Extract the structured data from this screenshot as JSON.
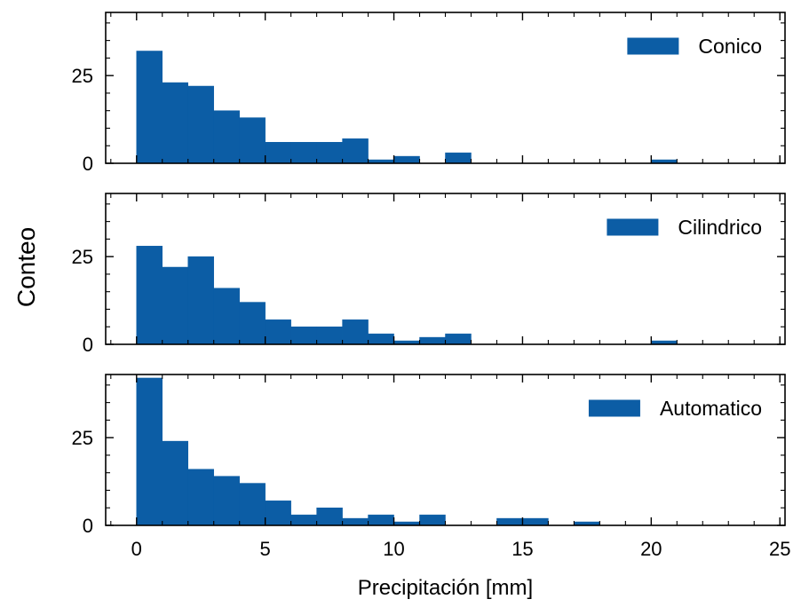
{
  "chart_data": {
    "type": "bar",
    "shared_x": true,
    "ylabel": "Conteo",
    "xlabel": "Precipitación [mm]",
    "xlim": [
      -1.2,
      25.2
    ],
    "ylim": [
      0,
      43
    ],
    "xticks": [
      0,
      5,
      10,
      15,
      20,
      25
    ],
    "yticks": [
      0,
      25
    ],
    "bin_width": 1,
    "color": "#0c5da5",
    "legend_position": "upper right",
    "panels": [
      {
        "series_name": "Conico",
        "bins": [
          {
            "x0": 0,
            "x1": 1,
            "count": 32
          },
          {
            "x0": 1,
            "x1": 2,
            "count": 23
          },
          {
            "x0": 2,
            "x1": 3,
            "count": 22
          },
          {
            "x0": 3,
            "x1": 4,
            "count": 15
          },
          {
            "x0": 4,
            "x1": 5,
            "count": 13
          },
          {
            "x0": 5,
            "x1": 6,
            "count": 6
          },
          {
            "x0": 6,
            "x1": 7,
            "count": 6
          },
          {
            "x0": 7,
            "x1": 8,
            "count": 6
          },
          {
            "x0": 8,
            "x1": 9,
            "count": 7
          },
          {
            "x0": 9,
            "x1": 10,
            "count": 1
          },
          {
            "x0": 10,
            "x1": 11,
            "count": 2
          },
          {
            "x0": 12,
            "x1": 13,
            "count": 3
          },
          {
            "x0": 20,
            "x1": 21,
            "count": 1
          }
        ]
      },
      {
        "series_name": "Cilindrico",
        "bins": [
          {
            "x0": 0,
            "x1": 1,
            "count": 28
          },
          {
            "x0": 1,
            "x1": 2,
            "count": 22
          },
          {
            "x0": 2,
            "x1": 3,
            "count": 25
          },
          {
            "x0": 3,
            "x1": 4,
            "count": 16
          },
          {
            "x0": 4,
            "x1": 5,
            "count": 12
          },
          {
            "x0": 5,
            "x1": 6,
            "count": 7
          },
          {
            "x0": 6,
            "x1": 7,
            "count": 5
          },
          {
            "x0": 7,
            "x1": 8,
            "count": 5
          },
          {
            "x0": 8,
            "x1": 9,
            "count": 7
          },
          {
            "x0": 9,
            "x1": 10,
            "count": 3
          },
          {
            "x0": 10,
            "x1": 11,
            "count": 1
          },
          {
            "x0": 11,
            "x1": 12,
            "count": 2
          },
          {
            "x0": 12,
            "x1": 13,
            "count": 3
          },
          {
            "x0": 20,
            "x1": 21,
            "count": 1
          }
        ]
      },
      {
        "series_name": "Automatico",
        "bins": [
          {
            "x0": 0,
            "x1": 1,
            "count": 42
          },
          {
            "x0": 1,
            "x1": 2,
            "count": 24
          },
          {
            "x0": 2,
            "x1": 3,
            "count": 16
          },
          {
            "x0": 3,
            "x1": 4,
            "count": 14
          },
          {
            "x0": 4,
            "x1": 5,
            "count": 12
          },
          {
            "x0": 5,
            "x1": 6,
            "count": 7
          },
          {
            "x0": 6,
            "x1": 7,
            "count": 3
          },
          {
            "x0": 7,
            "x1": 8,
            "count": 5
          },
          {
            "x0": 8,
            "x1": 9,
            "count": 2
          },
          {
            "x0": 9,
            "x1": 10,
            "count": 3
          },
          {
            "x0": 10,
            "x1": 11,
            "count": 1
          },
          {
            "x0": 11,
            "x1": 12,
            "count": 3
          },
          {
            "x0": 14,
            "x1": 15,
            "count": 2
          },
          {
            "x0": 15,
            "x1": 16,
            "count": 2
          },
          {
            "x0": 17,
            "x1": 18,
            "count": 1
          }
        ]
      }
    ]
  }
}
